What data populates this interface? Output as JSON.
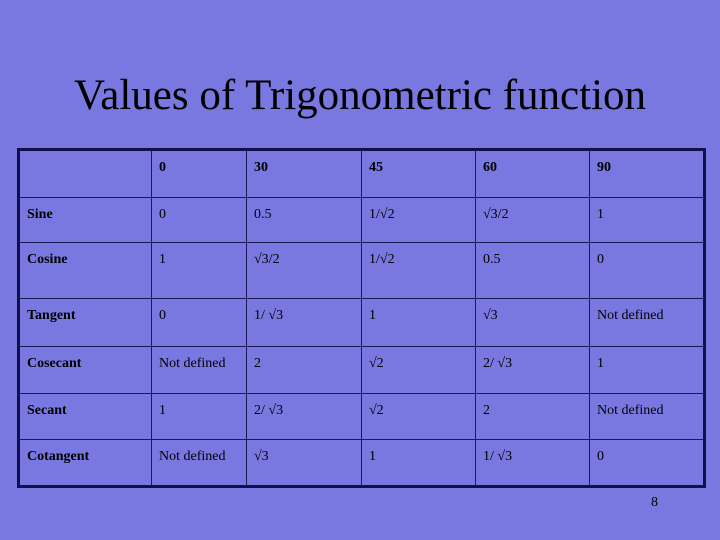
{
  "slide": {
    "title": "Values of Trigonometric function",
    "page_number": "8",
    "background_color": "#7878e0"
  },
  "table": {
    "headers": [
      "",
      "0",
      "30",
      "45",
      "60",
      "90"
    ],
    "rows": [
      [
        "Sine",
        "0",
        "0.5",
        "1/√2",
        "√3/2",
        "1"
      ],
      [
        "Cosine",
        "1",
        "√3/2",
        "1/√2",
        "0.5",
        "0"
      ],
      [
        "Tangent",
        "0",
        "1/ √3",
        "1",
        "√3",
        "Not defined"
      ],
      [
        "Cosecant",
        "Not defined",
        "2",
        "√2",
        "2/ √3",
        "1"
      ],
      [
        "Secant",
        "1",
        "2/ √3",
        "√2",
        "2",
        "Not defined"
      ],
      [
        "Cotangent",
        "Not defined",
        "√3",
        "1",
        "1/ √3",
        "0"
      ]
    ]
  }
}
